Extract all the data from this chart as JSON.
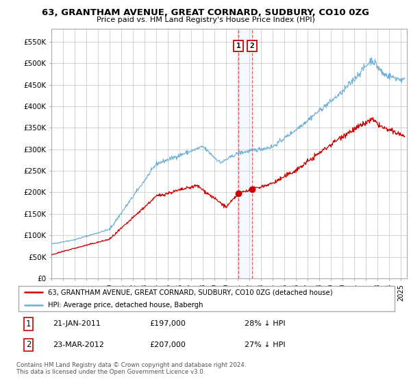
{
  "title": "63, GRANTHAM AVENUE, GREAT CORNARD, SUDBURY, CO10 0ZG",
  "subtitle": "Price paid vs. HM Land Registry's House Price Index (HPI)",
  "legend_line1": "63, GRANTHAM AVENUE, GREAT CORNARD, SUDBURY, CO10 0ZG (detached house)",
  "legend_line2": "HPI: Average price, detached house, Babergh",
  "footer": "Contains HM Land Registry data © Crown copyright and database right 2024.\nThis data is licensed under the Open Government Licence v3.0.",
  "transaction1_label": "1",
  "transaction1_date": "21-JAN-2011",
  "transaction1_price": "£197,000",
  "transaction1_hpi": "28% ↓ HPI",
  "transaction2_label": "2",
  "transaction2_date": "23-MAR-2012",
  "transaction2_price": "£207,000",
  "transaction2_hpi": "27% ↓ HPI",
  "vline1_x": 2011.05,
  "vline2_x": 2012.22,
  "point1_x": 2011.05,
  "point1_y": 197000,
  "point2_x": 2012.22,
  "point2_y": 207000,
  "hpi_color": "#6baed6",
  "price_color": "#cc0000",
  "vline_color": "#e06060",
  "vspan_color": "#ddeeff",
  "ylim_min": 0,
  "ylim_max": 580000,
  "xlim_min": 1995,
  "xlim_max": 2025.5,
  "yticks": [
    0,
    50000,
    100000,
    150000,
    200000,
    250000,
    300000,
    350000,
    400000,
    450000,
    500000,
    550000
  ],
  "ytick_labels": [
    "£0",
    "£50K",
    "£100K",
    "£150K",
    "£200K",
    "£250K",
    "£300K",
    "£350K",
    "£400K",
    "£450K",
    "£500K",
    "£550K"
  ],
  "background_color": "#ffffff",
  "grid_color": "#cccccc"
}
